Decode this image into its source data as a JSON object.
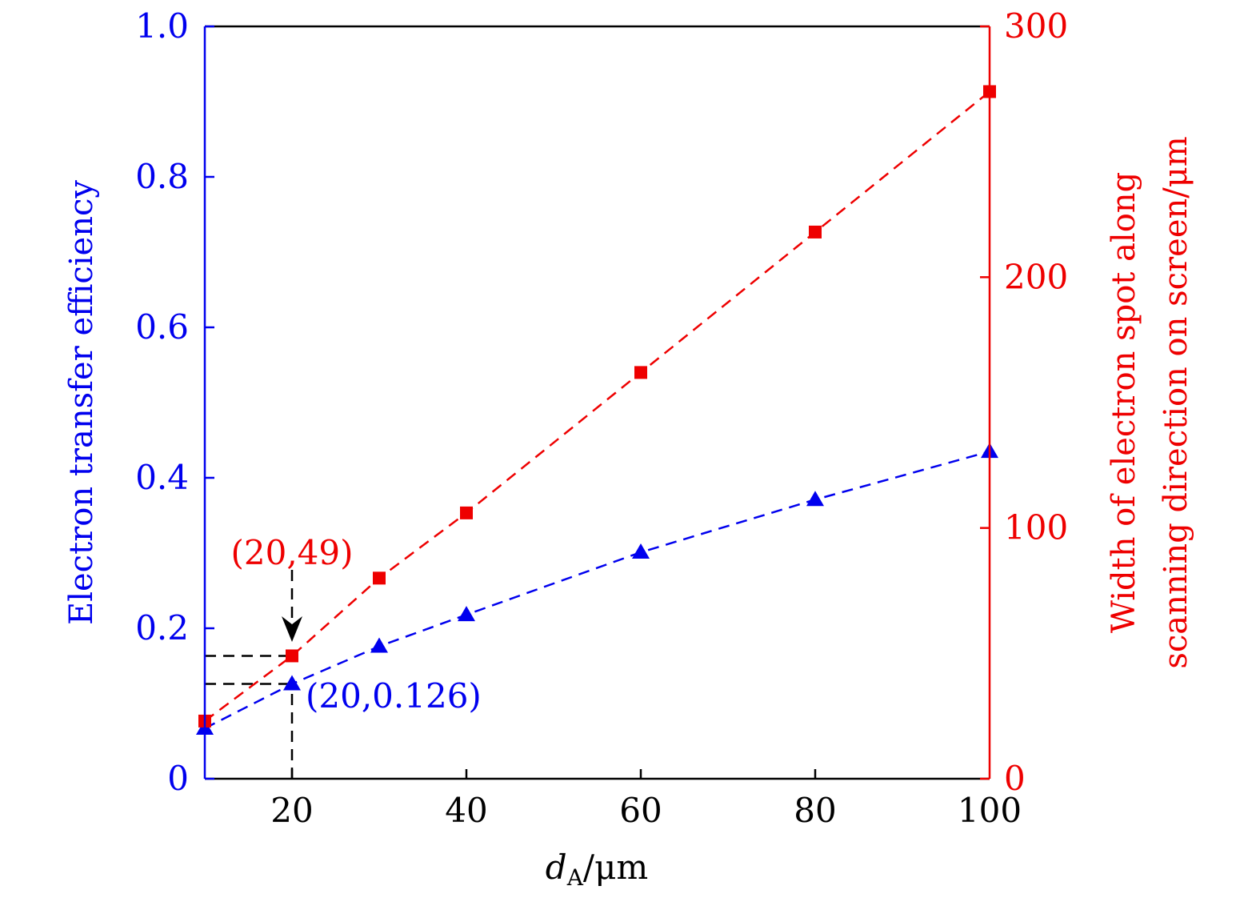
{
  "chart_data": {
    "type": "line",
    "title": "",
    "xlabel": "d_A/μm",
    "xlabel_main": "d",
    "xlabel_sub": "A",
    "xlabel_unit": "/μm",
    "ylabel_left": "Electron transfer efficiency",
    "ylabel_right_line1": "Width of electron spot along",
    "ylabel_right_line2": "scanning direction on screen/μm",
    "xlim": [
      10,
      100
    ],
    "ylim_left": [
      0,
      1.0
    ],
    "ylim_right": [
      0,
      300
    ],
    "x_ticks": [
      "20",
      "40",
      "60",
      "80",
      "100"
    ],
    "x_tick_values": [
      20,
      40,
      60,
      80,
      100
    ],
    "y_left_ticks": [
      "0",
      "0.2",
      "0.4",
      "0.6",
      "0.8",
      "1.0"
    ],
    "y_left_tick_values": [
      0,
      0.2,
      0.4,
      0.6,
      0.8,
      1.0
    ],
    "y_right_ticks": [
      "0",
      "100",
      "200",
      "300"
    ],
    "y_right_tick_values": [
      0,
      100,
      200,
      300
    ],
    "grid": false,
    "x": [
      10,
      20,
      30,
      40,
      60,
      80,
      100
    ],
    "series": [
      {
        "name": "Electron transfer efficiency",
        "axis": "left",
        "marker": "triangle",
        "line": "dashed",
        "color": "#0000ee",
        "values": [
          0.067,
          0.126,
          0.176,
          0.218,
          0.301,
          0.371,
          0.435
        ]
      },
      {
        "name": "Width of electron spot",
        "axis": "right",
        "marker": "square",
        "line": "dashed",
        "color": "#ee0000",
        "values": [
          23,
          49,
          80,
          106,
          162,
          218,
          274
        ]
      }
    ],
    "annotations": [
      {
        "text": "(20,49)",
        "x": 20,
        "y": 49,
        "axis": "right",
        "color": "#ee0000"
      },
      {
        "text": "(20,0.126)",
        "x": 20,
        "y": 0.126,
        "axis": "left",
        "color": "#0000ee"
      }
    ]
  }
}
